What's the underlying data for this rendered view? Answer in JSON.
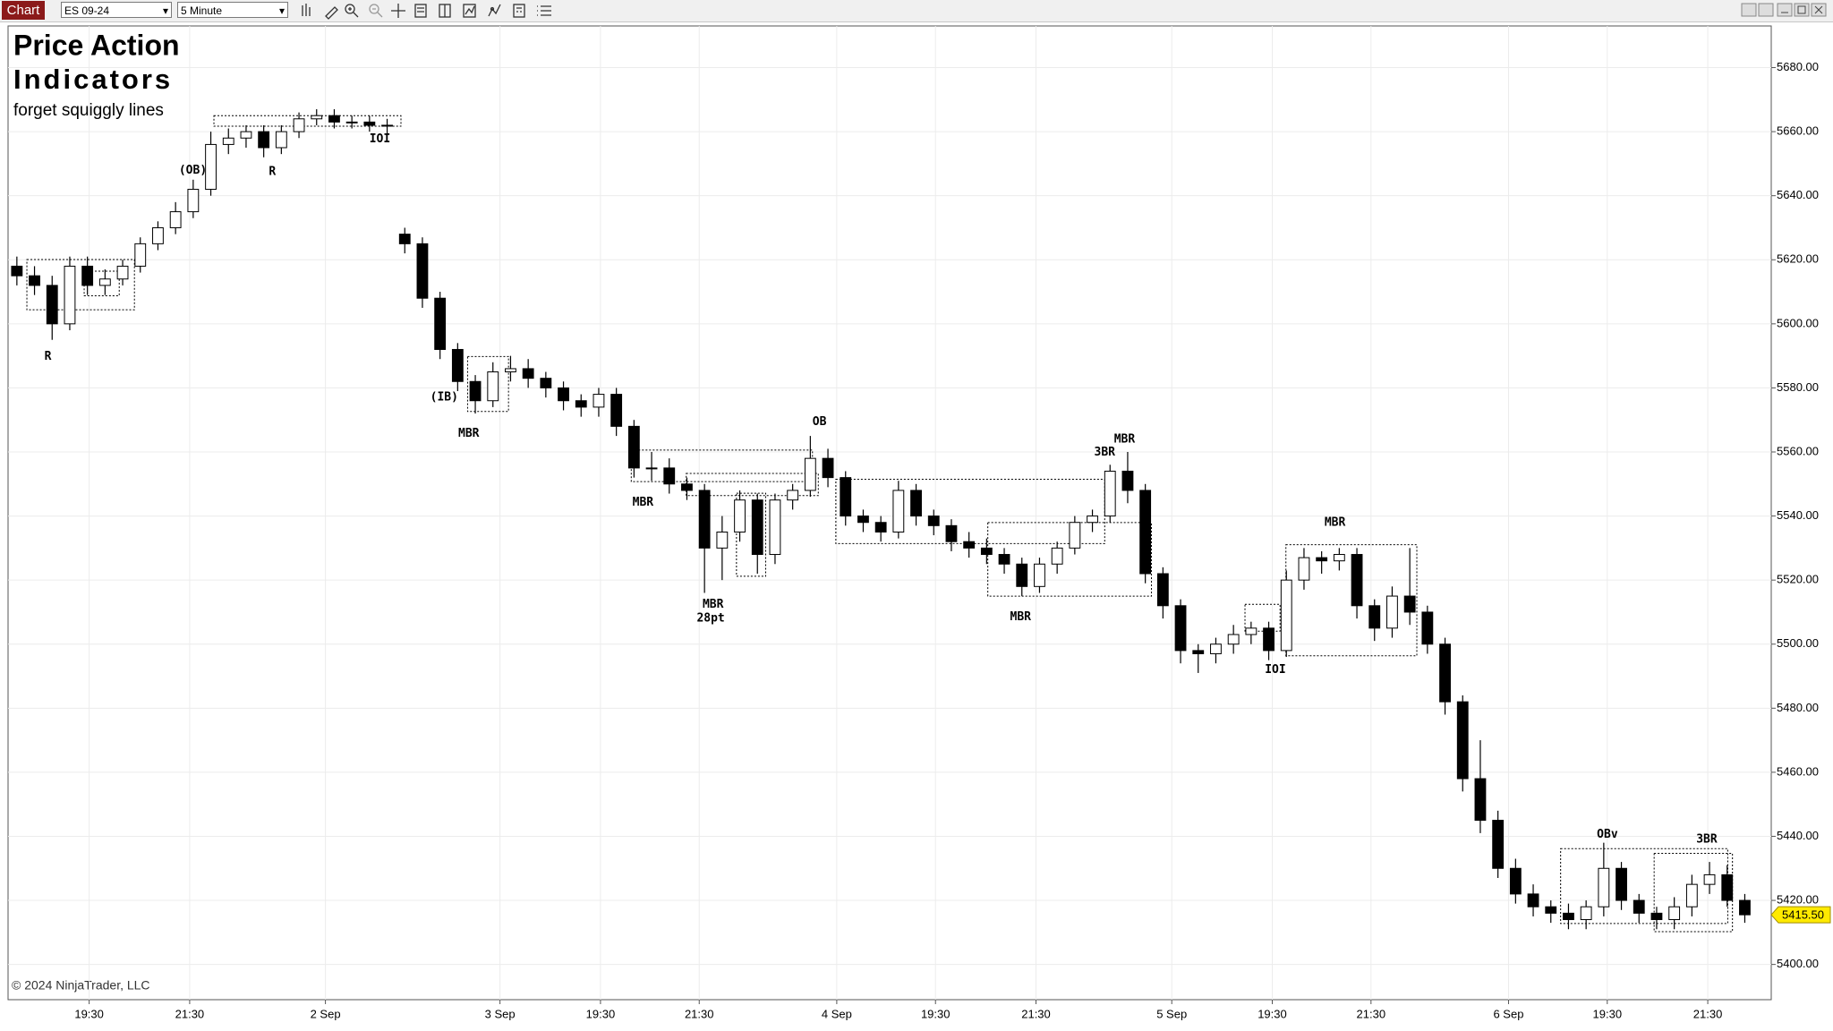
{
  "toolbar": {
    "button": "Chart",
    "instrument": "ES 09-24",
    "interval": "5 Minute"
  },
  "chart_data": {
    "type": "candlestick",
    "title": "Price Action",
    "subtitle": "Indicators",
    "note": "forget squiggly lines",
    "copyright": "© 2024 NinjaTrader, LLC",
    "up_color": "#ffffff",
    "down_color": "#000000",
    "wick_color": "#000000",
    "grid": true,
    "open": [
      5618,
      5615,
      5612,
      5600,
      5618,
      5612,
      5614,
      5618,
      5625,
      5630,
      5635,
      5642,
      5656,
      5658,
      5660,
      5655,
      5660,
      5664,
      5665,
      5663,
      5663,
      5662,
      5628,
      5625,
      5608,
      5592,
      5582,
      5576,
      5585,
      5586,
      5583,
      5580,
      5576,
      5574,
      5578,
      5568,
      5555,
      5555,
      5550,
      5548,
      5530,
      5535,
      5545,
      5528,
      5545,
      5548,
      5558,
      5552,
      5540,
      5538,
      5535,
      5548,
      5540,
      5537,
      5532,
      5530,
      5528,
      5525,
      5518,
      5525,
      5530,
      5538,
      5540,
      5554,
      5548,
      5522,
      5512,
      5498,
      5497,
      5500,
      5503,
      5505,
      5498,
      5520,
      5527,
      5526,
      5528,
      5512,
      5505,
      5515,
      5510,
      5500,
      5482,
      5458,
      5445,
      5430,
      5422,
      5418,
      5416,
      5414,
      5418,
      5430,
      5420,
      5416,
      5414,
      5418,
      5425,
      5428,
      5420
    ],
    "high": [
      5621,
      5618,
      5615,
      5621,
      5621,
      5617,
      5620,
      5627,
      5632,
      5638,
      5645,
      5660,
      5661,
      5662,
      5662,
      5662,
      5666,
      5667,
      5667,
      5665,
      5665,
      5664,
      5630,
      5627,
      5610,
      5594,
      5584,
      5588,
      5590,
      5589,
      5585,
      5582,
      5578,
      5580,
      5580,
      5570,
      5560,
      5558,
      5552,
      5550,
      5540,
      5548,
      5547,
      5547,
      5550,
      5565,
      5561,
      5554,
      5542,
      5540,
      5551,
      5550,
      5542,
      5539,
      5535,
      5533,
      5530,
      5527,
      5527,
      5532,
      5540,
      5542,
      5556,
      5560,
      5550,
      5524,
      5514,
      5500,
      5502,
      5506,
      5507,
      5507,
      5523,
      5530,
      5529,
      5530,
      5530,
      5514,
      5518,
      5530,
      5512,
      5502,
      5484,
      5470,
      5448,
      5433,
      5425,
      5420,
      5419,
      5420,
      5438,
      5432,
      5422,
      5418,
      5421,
      5428,
      5432,
      5431,
      5422
    ],
    "low": [
      5612,
      5609,
      5595,
      5598,
      5609,
      5609,
      5612,
      5616,
      5623,
      5628,
      5633,
      5640,
      5653,
      5655,
      5652,
      5653,
      5658,
      5662,
      5661,
      5661,
      5660,
      5659,
      5622,
      5605,
      5589,
      5579,
      5572,
      5574,
      5582,
      5580,
      5577,
      5573,
      5571,
      5571,
      5565,
      5552,
      5551,
      5547,
      5545,
      5516,
      5520,
      5532,
      5522,
      5525,
      5542,
      5546,
      5549,
      5537,
      5535,
      5532,
      5533,
      5537,
      5534,
      5529,
      5527,
      5525,
      5522,
      5515,
      5516,
      5522,
      5528,
      5535,
      5538,
      5544,
      5519,
      5508,
      5494,
      5491,
      5494,
      5497,
      5500,
      5495,
      5496,
      5517,
      5522,
      5523,
      5508,
      5501,
      5502,
      5506,
      5497,
      5478,
      5454,
      5441,
      5427,
      5419,
      5415,
      5413,
      5411,
      5411,
      5415,
      5417,
      5413,
      5411,
      5411,
      5415,
      5422,
      5418,
      5413
    ],
    "close": [
      5615,
      5612,
      5600,
      5618,
      5612,
      5614,
      5618,
      5625,
      5630,
      5635,
      5642,
      5656,
      5658,
      5660,
      5655,
      5660,
      5664,
      5665,
      5663,
      5663,
      5662,
      5662,
      5625,
      5608,
      5592,
      5582,
      5576,
      5585,
      5586,
      5583,
      5580,
      5576,
      5574,
      5578,
      5568,
      5555,
      5555,
      5550,
      5548,
      5530,
      5535,
      5545,
      5528,
      5545,
      5548,
      5558,
      5552,
      5540,
      5538,
      5535,
      5548,
      5540,
      5537,
      5532,
      5530,
      5528,
      5525,
      5518,
      5525,
      5530,
      5538,
      5540,
      5554,
      5548,
      5522,
      5512,
      5498,
      5497,
      5500,
      5503,
      5505,
      5498,
      5520,
      5527,
      5526,
      5528,
      5512,
      5505,
      5515,
      5510,
      5500,
      5482,
      5458,
      5445,
      5430,
      5422,
      5418,
      5416,
      5414,
      5418,
      5430,
      5420,
      5416,
      5414,
      5418,
      5425,
      5428,
      5420,
      5415.5
    ],
    "last_price": {
      "value": 5415.5,
      "label": "5415.50"
    },
    "xlim": [
      0,
      100
    ],
    "xticks": [
      {
        "value": 4.6,
        "label": "19:30"
      },
      {
        "value": 10.3,
        "label": "21:30"
      },
      {
        "value": 18.0,
        "label": "2 Sep"
      },
      {
        "value": 27.9,
        "label": "3 Sep"
      },
      {
        "value": 33.6,
        "label": "19:30"
      },
      {
        "value": 39.2,
        "label": "21:30"
      },
      {
        "value": 47.0,
        "label": "4 Sep"
      },
      {
        "value": 52.6,
        "label": "19:30"
      },
      {
        "value": 58.3,
        "label": "21:30"
      },
      {
        "value": 66.0,
        "label": "5 Sep"
      },
      {
        "value": 71.7,
        "label": "19:30"
      },
      {
        "value": 77.3,
        "label": "21:30"
      },
      {
        "value": 85.1,
        "label": "6 Sep"
      },
      {
        "value": 90.7,
        "label": "19:30"
      },
      {
        "value": 96.4,
        "label": "21:30"
      }
    ],
    "ylim": [
      5389,
      5693
    ],
    "yticks": [
      {
        "value": 5400,
        "label": "5400.00"
      },
      {
        "value": 5420,
        "label": "5420.00"
      },
      {
        "value": 5440,
        "label": "5440.00"
      },
      {
        "value": 5460,
        "label": "5460.00"
      },
      {
        "value": 5480,
        "label": "5480.00"
      },
      {
        "value": 5500,
        "label": "5500.00"
      },
      {
        "value": 5520,
        "label": "5520.00"
      },
      {
        "value": 5540,
        "label": "5540.00"
      },
      {
        "value": 5560,
        "label": "5560.00"
      },
      {
        "value": 5580,
        "label": "5580.00"
      },
      {
        "value": 5600,
        "label": "5600.00"
      },
      {
        "value": 5620,
        "label": "5620.00"
      },
      {
        "value": 5640,
        "label": "5640.00"
      },
      {
        "value": 5660,
        "label": "5660.00"
      },
      {
        "value": 5680,
        "label": "5680.00"
      }
    ],
    "annotations": [
      "R",
      "(OB)",
      "R",
      "IOI",
      "(IB)",
      "MBR",
      "MBR",
      "MBR",
      "28pt",
      "OB",
      "3BR",
      "MBR",
      "MBR",
      "MBR",
      "IOI",
      "OBv",
      "3BR"
    ]
  }
}
